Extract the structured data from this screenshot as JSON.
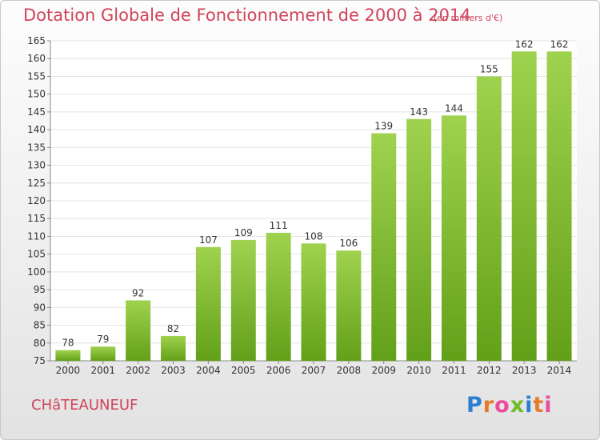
{
  "title": "Dotation Globale de Fonctionnement de 2000 à 2014",
  "unit_note": "(en milliers d'€)",
  "city": "CHâTEAUNEUF",
  "logo": {
    "text": "Proxiti",
    "colors": [
      "#2a7fd4",
      "#e8792b",
      "#e94c9b",
      "#6ebd2c"
    ]
  },
  "colors": {
    "title": "#d0435a",
    "bar_light": "#9fd24f",
    "bar_dark": "#63a01a",
    "grid": "#e4e4e4"
  },
  "chart_data": {
    "type": "bar",
    "title": "Dotation Globale de Fonctionnement de 2000 à 2014",
    "categories": [
      "2000",
      "2001",
      "2002",
      "2003",
      "2004",
      "2005",
      "2006",
      "2007",
      "2008",
      "2009",
      "2010",
      "2011",
      "2012",
      "2013",
      "2014"
    ],
    "values": [
      78,
      79,
      92,
      82,
      107,
      109,
      111,
      108,
      106,
      139,
      143,
      144,
      155,
      162,
      162
    ],
    "ylim": [
      75,
      165
    ],
    "yticks": [
      75,
      80,
      85,
      90,
      95,
      100,
      105,
      110,
      115,
      120,
      125,
      130,
      135,
      140,
      145,
      150,
      155,
      160,
      165
    ],
    "grid": true,
    "data_labels": true
  }
}
